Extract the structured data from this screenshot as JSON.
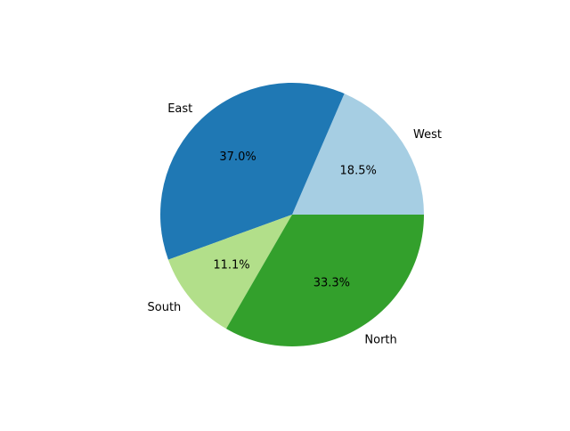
{
  "chart_data": {
    "type": "pie",
    "title": "",
    "start_angle_deg": 0,
    "direction": "counterclockwise",
    "slices": [
      {
        "label": "West",
        "value": 18.5,
        "pct_label": "18.5%",
        "color": "#a6cee3"
      },
      {
        "label": "East",
        "value": 37.0,
        "pct_label": "37.0%",
        "color": "#1f78b4"
      },
      {
        "label": "South",
        "value": 11.1,
        "pct_label": "11.1%",
        "color": "#b2df8a"
      },
      {
        "label": "North",
        "value": 33.3,
        "pct_label": "33.3%",
        "color": "#33a02c"
      }
    ]
  }
}
